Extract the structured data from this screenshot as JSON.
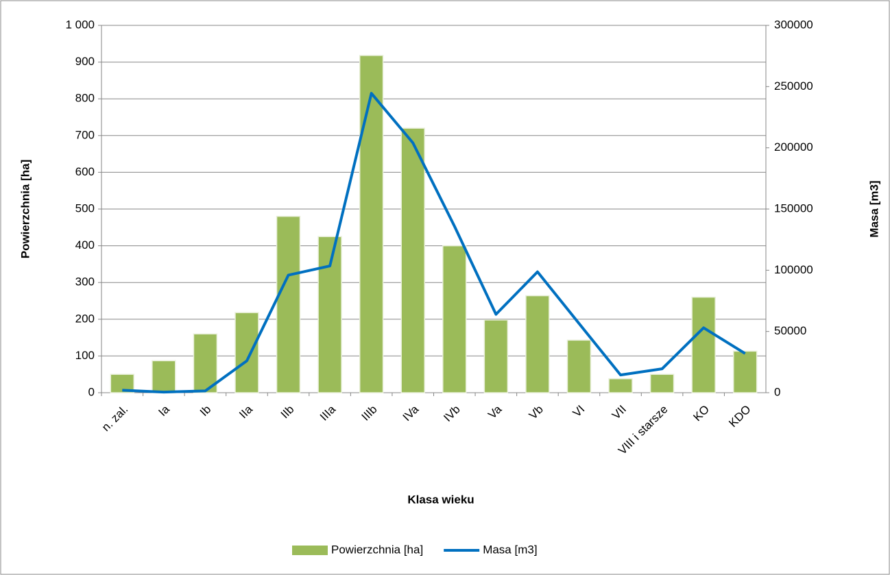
{
  "chart_data": {
    "type": "bar",
    "x_label": "Klasa wieku",
    "y_label": "Powierzchnia [ha]",
    "y2_label": "Masa [m3]",
    "categories": [
      "n. zal.",
      "Ia",
      "Ib",
      "IIa",
      "IIb",
      "IIIa",
      "IIIb",
      "IVa",
      "IVb",
      "Va",
      "Vb",
      "VI",
      "VII",
      "VIII i starsze",
      "KO",
      "KDO"
    ],
    "series": [
      {
        "name": "Powierzchnia [ha]",
        "type": "bar",
        "color": "#9bbb59",
        "axis": "y",
        "values": [
          50,
          87,
          160,
          218,
          480,
          425,
          918,
          720,
          400,
          198,
          264,
          143,
          38,
          50,
          260,
          113
        ]
      },
      {
        "name": "Masa [m3]",
        "type": "line",
        "color": "#0070c0",
        "axis": "y2",
        "values": [
          2000,
          500,
          1500,
          26000,
          96000,
          103500,
          244500,
          204000,
          136000,
          64000,
          98700,
          56500,
          14500,
          19500,
          53000,
          32000
        ]
      }
    ],
    "ylim": [
      0,
      1000
    ],
    "yticks": [
      0,
      100,
      200,
      300,
      400,
      500,
      600,
      700,
      800,
      900,
      {
        "value": 1000,
        "label": "1 000"
      }
    ],
    "y2lim": [
      0,
      300000
    ],
    "y2ticks": [
      0,
      50000,
      100000,
      150000,
      200000,
      250000,
      300000
    ],
    "grid": true,
    "legend": "bottom"
  }
}
